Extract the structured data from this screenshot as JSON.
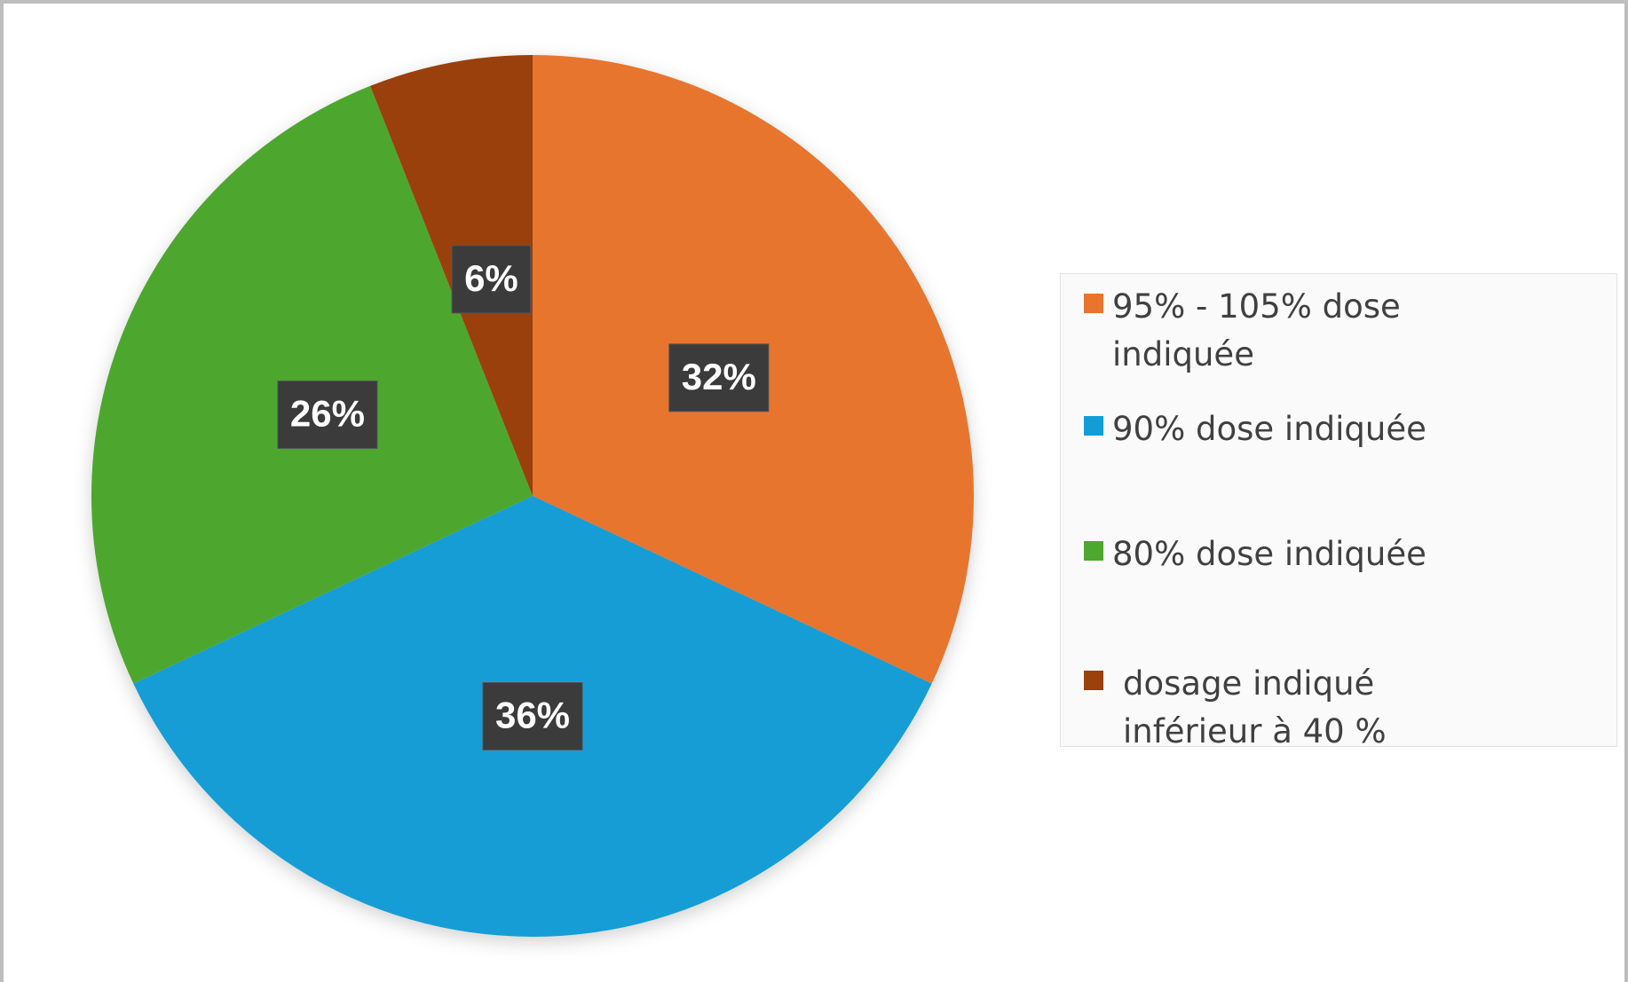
{
  "chart_data": {
    "type": "pie",
    "categories": [
      "95% - 105%  dose indiquée",
      "90%  dose indiquée",
      "80%  dose indiquée",
      "dosage indiqué inférieur à 40 %"
    ],
    "values": [
      32,
      36,
      26,
      6
    ],
    "value_labels": [
      "32%",
      "36%",
      "26%",
      "6%"
    ],
    "colors": [
      "#e8742f",
      "#129dd6",
      "#4ea72e",
      "#9a410e"
    ],
    "legend": "right"
  }
}
